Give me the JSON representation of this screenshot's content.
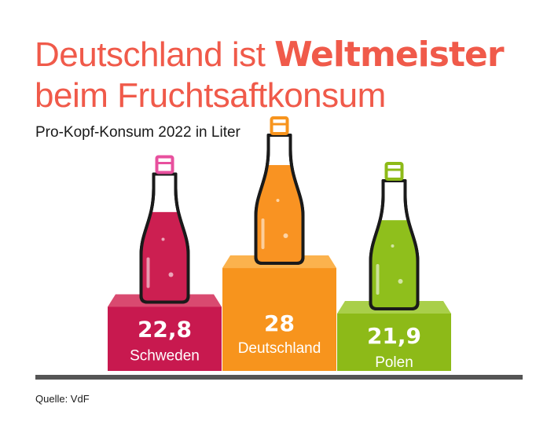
{
  "title": {
    "line1_prefix": "Deutschland ist ",
    "line1_highlight": "Weltmeister",
    "line2": "beim Fruchtsaftkonsum"
  },
  "subtitle": "Pro-Kopf-Konsum 2022 in Liter",
  "source": "Quelle: VdF",
  "colors": {
    "title": "#f05a4a",
    "baseline": "#555555"
  },
  "chart_data": {
    "type": "bar",
    "categories": [
      "Schweden",
      "Deutschland",
      "Polen"
    ],
    "values": [
      22.8,
      28,
      21.9
    ],
    "value_labels": [
      "22,8",
      "28",
      "21,9"
    ],
    "colors": [
      "#c8194f",
      "#f7941d",
      "#8dba18"
    ],
    "top_colors": [
      "#d94a70",
      "#fbb24d",
      "#a9cf4a"
    ],
    "cap_colors": [
      "#e8509e",
      "#f7941d",
      "#8dba18"
    ],
    "bottle_fill": [
      "#cc1f51",
      "#f99322",
      "#8fbf1c"
    ],
    "ylabel": "Liter",
    "grid": false,
    "legend": "none"
  }
}
